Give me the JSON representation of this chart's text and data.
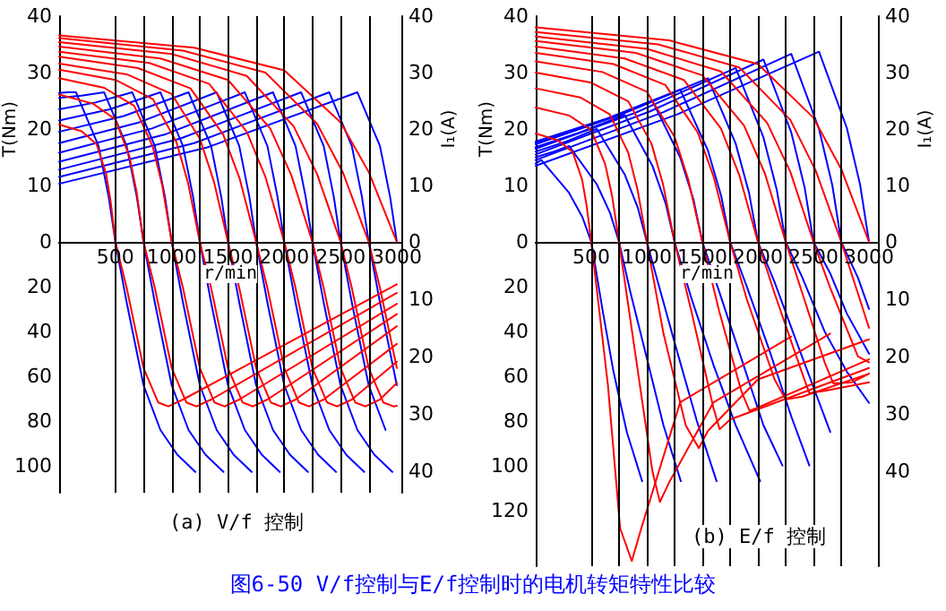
{
  "chart_data": [
    {
      "type": "line",
      "xlabel": "r/min",
      "ylabel": "T(Nm)",
      "y2label": "I₁(A)",
      "xlim": [
        0,
        3040
      ],
      "xticks": [
        500,
        1000,
        1500,
        2000,
        2500,
        3000
      ],
      "ylim": [
        0,
        40
      ],
      "yticks": [
        0,
        10,
        20,
        30,
        40
      ],
      "y2lim": [
        0,
        40
      ],
      "y2ticks": [
        0,
        10,
        20,
        30,
        40
      ],
      "ref_lines": [
        {
          "axis": "x",
          "value": 500,
          "color": "#000000"
        },
        {
          "axis": "x",
          "value": 750,
          "color": "#000000"
        },
        {
          "axis": "x",
          "value": 1000,
          "color": "#000000"
        },
        {
          "axis": "x",
          "value": 1250,
          "color": "#000000"
        },
        {
          "axis": "x",
          "value": 1500,
          "color": "#000000"
        },
        {
          "axis": "x",
          "value": 1750,
          "color": "#000000"
        },
        {
          "axis": "x",
          "value": 2000,
          "color": "#000000"
        },
        {
          "axis": "x",
          "value": 2250,
          "color": "#000000"
        },
        {
          "axis": "x",
          "value": 2500,
          "color": "#000000"
        },
        {
          "axis": "x",
          "value": 2750,
          "color": "#000000"
        }
      ],
      "series": [
        {
          "color": "#0000ff",
          "x": [
            0,
            75,
            150,
            350,
            440,
            500
          ],
          "values": [
            26.4,
            26.5,
            26.5,
            17,
            8,
            0
          ]
        },
        {
          "color": "#0000ff",
          "x": [
            0,
            200,
            400,
            600,
            690,
            750
          ],
          "values": [
            25.5,
            25.9,
            26.5,
            17,
            8,
            0
          ]
        },
        {
          "color": "#0000ff",
          "x": [
            0,
            325,
            650,
            850,
            940,
            1000
          ],
          "values": [
            23.5,
            24.7,
            26.5,
            17,
            8,
            0
          ]
        },
        {
          "color": "#0000ff",
          "x": [
            0,
            450,
            900,
            1100,
            1190,
            1250
          ],
          "values": [
            21.5,
            23.5,
            26.5,
            17,
            8,
            0
          ]
        },
        {
          "color": "#0000ff",
          "x": [
            0,
            575,
            1150,
            1350,
            1440,
            1500
          ],
          "values": [
            19.5,
            22.3,
            26.5,
            17,
            8,
            0
          ]
        },
        {
          "color": "#0000ff",
          "x": [
            0,
            700,
            1400,
            1600,
            1690,
            1750
          ],
          "values": [
            17.5,
            21.1,
            26.5,
            17,
            8,
            0
          ]
        },
        {
          "color": "#0000ff",
          "x": [
            0,
            825,
            1650,
            1850,
            1940,
            2000
          ],
          "values": [
            15.8,
            20.1,
            26.5,
            17,
            8,
            0
          ]
        },
        {
          "color": "#0000ff",
          "x": [
            0,
            950,
            1900,
            2100,
            2190,
            2250
          ],
          "values": [
            14.2,
            19.1,
            26.5,
            17,
            8,
            0
          ]
        },
        {
          "color": "#0000ff",
          "x": [
            0,
            1075,
            2150,
            2350,
            2440,
            2500
          ],
          "values": [
            12.8,
            18.3,
            26.5,
            17,
            8,
            0
          ]
        },
        {
          "color": "#0000ff",
          "x": [
            0,
            1200,
            2400,
            2600,
            2690,
            2750
          ],
          "values": [
            11.5,
            17.5,
            26.5,
            17,
            8,
            0
          ]
        },
        {
          "color": "#0000ff",
          "x": [
            0,
            1325,
            2650,
            2850,
            2940,
            3000
          ],
          "values": [
            10.3,
            16.8,
            26.5,
            17,
            8,
            0
          ]
        },
        {
          "color": "#ff0000",
          "axis": "y2",
          "x": [
            0,
            200,
            333,
            417,
            458,
            500
          ],
          "values": [
            20.8,
            19.6,
            17.3,
            12.1,
            7.1,
            0
          ]
        },
        {
          "color": "#ff0000",
          "axis": "y2",
          "x": [
            0,
            300,
            500,
            625,
            688,
            750
          ],
          "values": [
            26.1,
            24.5,
            21.7,
            15.1,
            8.9,
            0
          ]
        },
        {
          "color": "#ff0000",
          "axis": "y2",
          "x": [
            0,
            400,
            667,
            833,
            917,
            1000
          ],
          "values": [
            29,
            27.3,
            24.1,
            16.8,
            9.9,
            0
          ]
        },
        {
          "color": "#ff0000",
          "axis": "y2",
          "x": [
            0,
            500,
            833,
            1042,
            1146,
            1250
          ],
          "values": [
            30.5,
            28.7,
            25.3,
            17.7,
            10.4,
            0
          ]
        },
        {
          "color": "#ff0000",
          "axis": "y2",
          "x": [
            0,
            600,
            1000,
            1250,
            1375,
            1500
          ],
          "values": [
            31.6,
            29.7,
            26.2,
            18.3,
            10.7,
            0
          ]
        },
        {
          "color": "#ff0000",
          "axis": "y2",
          "x": [
            0,
            700,
            1167,
            1458,
            1604,
            1750
          ],
          "values": [
            32.8,
            30.8,
            27.2,
            19,
            11.2,
            0
          ]
        },
        {
          "color": "#ff0000",
          "axis": "y2",
          "x": [
            0,
            800,
            1333,
            1667,
            1833,
            2000
          ],
          "values": [
            33.7,
            31.7,
            28,
            19.5,
            11.5,
            0
          ]
        },
        {
          "color": "#ff0000",
          "axis": "y2",
          "x": [
            0,
            900,
            1500,
            1875,
            2063,
            2250
          ],
          "values": [
            34.6,
            32.5,
            28.7,
            20.1,
            11.8,
            0
          ]
        },
        {
          "color": "#ff0000",
          "axis": "y2",
          "x": [
            0,
            1000,
            1667,
            2083,
            2292,
            2500
          ],
          "values": [
            35.4,
            33.3,
            29.4,
            20.5,
            12,
            0
          ]
        },
        {
          "color": "#ff0000",
          "axis": "y2",
          "x": [
            0,
            1100,
            1833,
            2292,
            2521,
            2750
          ],
          "values": [
            36.1,
            33.9,
            30,
            20.9,
            12.3,
            0
          ]
        },
        {
          "color": "#ff0000",
          "axis": "y2",
          "x": [
            0,
            1200,
            2000,
            2500,
            2750,
            3000
          ],
          "values": [
            36.6,
            34.4,
            30.4,
            21.2,
            12.4,
            0
          ]
        }
      ]
    },
    {
      "type": "line",
      "title": "(a) V/f 控制",
      "tick_labels": "y",
      "xlim": [
        0,
        3040
      ],
      "ylim": [
        112,
        0
      ],
      "yticks": [
        20,
        40,
        60,
        80,
        100
      ],
      "y2lim": [
        43.75,
        0
      ],
      "y2ticks": [
        10,
        20,
        30,
        40
      ],
      "ref_lines": [
        {
          "axis": "x",
          "value": 500,
          "color": "#000000"
        },
        {
          "axis": "x",
          "value": 750,
          "color": "#000000"
        },
        {
          "axis": "x",
          "value": 1000,
          "color": "#000000"
        },
        {
          "axis": "x",
          "value": 1250,
          "color": "#000000"
        },
        {
          "axis": "x",
          "value": 1500,
          "color": "#000000"
        },
        {
          "axis": "x",
          "value": 1750,
          "color": "#000000"
        },
        {
          "axis": "x",
          "value": 2000,
          "color": "#000000"
        },
        {
          "axis": "x",
          "value": 2250,
          "color": "#000000"
        },
        {
          "axis": "x",
          "value": 2500,
          "color": "#000000"
        },
        {
          "axis": "x",
          "value": 2750,
          "color": "#000000"
        }
      ],
      "series": [
        {
          "color": "#0000ff",
          "x": [
            500,
            600,
            750,
            900,
            1050,
            1210
          ],
          "values": [
            0,
            27,
            64,
            84,
            95,
            102.7
          ]
        },
        {
          "color": "#0000ff",
          "x": [
            750,
            850,
            1000,
            1150,
            1300,
            1460
          ],
          "values": [
            0,
            27,
            64,
            84,
            95,
            102.7
          ]
        },
        {
          "color": "#0000ff",
          "x": [
            1000,
            1100,
            1250,
            1400,
            1550,
            1710
          ],
          "values": [
            0,
            27,
            64,
            84,
            95,
            102.7
          ]
        },
        {
          "color": "#0000ff",
          "x": [
            1250,
            1350,
            1500,
            1650,
            1800,
            1960
          ],
          "values": [
            0,
            27,
            64,
            84,
            95,
            102.7
          ]
        },
        {
          "color": "#0000ff",
          "x": [
            1500,
            1600,
            1750,
            1900,
            2050,
            2210
          ],
          "values": [
            0,
            27,
            64,
            84,
            95,
            102.7
          ]
        },
        {
          "color": "#0000ff",
          "x": [
            1750,
            1850,
            2000,
            2150,
            2300,
            2460
          ],
          "values": [
            0,
            27,
            64,
            84,
            95,
            102.7
          ]
        },
        {
          "color": "#0000ff",
          "x": [
            2000,
            2100,
            2250,
            2400,
            2550,
            2710
          ],
          "values": [
            0,
            27,
            64,
            84,
            95,
            102.7
          ]
        },
        {
          "color": "#0000ff",
          "x": [
            2250,
            2350,
            2500,
            2650,
            2800,
            2960
          ],
          "values": [
            0,
            27,
            64,
            84,
            95,
            102.7
          ]
        },
        {
          "color": "#0000ff",
          "x": [
            2500,
            2600,
            2750,
            2900
          ],
          "values": [
            0,
            27,
            64,
            84
          ]
        },
        {
          "color": "#0000ff",
          "x": [
            2750,
            2850,
            3000
          ],
          "values": [
            0,
            27,
            64
          ]
        },
        {
          "color": "#ff0000",
          "axis": "y2",
          "x": [
            500,
            600,
            750,
            880,
            970,
            1100,
            3000
          ],
          "values": [
            0,
            8,
            22,
            28,
            28.7,
            27.5,
            7.4
          ]
        },
        {
          "color": "#ff0000",
          "axis": "y2",
          "x": [
            750,
            850,
            1000,
            1130,
            1220,
            1350,
            3000
          ],
          "values": [
            0,
            8,
            22,
            28,
            28.7,
            27.5,
            8.9
          ]
        },
        {
          "color": "#ff0000",
          "axis": "y2",
          "x": [
            1000,
            1100,
            1250,
            1380,
            1470,
            1600,
            3000
          ],
          "values": [
            0,
            8,
            22,
            28,
            28.7,
            27.5,
            10.8
          ]
        },
        {
          "color": "#ff0000",
          "axis": "y2",
          "x": [
            1250,
            1350,
            1500,
            1630,
            1720,
            1850,
            3000
          ],
          "values": [
            0,
            8,
            22,
            28,
            28.7,
            27.5,
            12.6
          ]
        },
        {
          "color": "#ff0000",
          "axis": "y2",
          "x": [
            1500,
            1600,
            1750,
            1880,
            1970,
            2100,
            3000
          ],
          "values": [
            0,
            8,
            22,
            28,
            28.7,
            27.5,
            14.7
          ]
        },
        {
          "color": "#ff0000",
          "axis": "y2",
          "x": [
            1750,
            1850,
            2000,
            2130,
            2220,
            2350,
            3000
          ],
          "values": [
            0,
            8,
            22,
            28,
            28.7,
            27.5,
            17.8
          ]
        },
        {
          "color": "#ff0000",
          "axis": "y2",
          "x": [
            2000,
            2100,
            2250,
            2380,
            2470,
            2600,
            3000
          ],
          "values": [
            0,
            8,
            22,
            28,
            28.7,
            27.5,
            20.9
          ]
        },
        {
          "color": "#ff0000",
          "axis": "y2",
          "x": [
            2250,
            2350,
            2500,
            2630,
            2720,
            2850,
            3000
          ],
          "values": [
            0,
            8,
            22,
            28,
            28.7,
            27.5,
            24.6
          ]
        },
        {
          "color": "#ff0000",
          "axis": "y2",
          "x": [
            2500,
            2600,
            2750,
            2880,
            2970,
            3000
          ],
          "values": [
            0,
            8,
            22,
            28,
            28.7,
            28.6
          ]
        },
        {
          "color": "#ff0000",
          "axis": "y2",
          "x": [
            2750,
            2850,
            3000
          ],
          "values": [
            0,
            8,
            22
          ]
        }
      ]
    },
    {
      "type": "line",
      "xlabel": "r/min",
      "ylabel": "T(Nm)",
      "y2label": "I₁(A)",
      "xlim": [
        0,
        3080
      ],
      "xticks": [
        500,
        1000,
        1500,
        2000,
        2500,
        3000
      ],
      "ylim": [
        0,
        40
      ],
      "yticks": [
        0,
        10,
        20,
        30,
        40
      ],
      "y2lim": [
        0,
        40
      ],
      "y2ticks": [
        0,
        10,
        20,
        30,
        40
      ],
      "ref_lines": [
        {
          "axis": "x",
          "value": 500,
          "color": "#000000"
        },
        {
          "axis": "x",
          "value": 750,
          "color": "#000000"
        },
        {
          "axis": "x",
          "value": 1000,
          "color": "#000000"
        },
        {
          "axis": "x",
          "value": 1250,
          "color": "#000000"
        },
        {
          "axis": "x",
          "value": 1500,
          "color": "#000000"
        },
        {
          "axis": "x",
          "value": 1750,
          "color": "#000000"
        },
        {
          "axis": "x",
          "value": 2000,
          "color": "#000000"
        },
        {
          "axis": "x",
          "value": 2250,
          "color": "#000000"
        },
        {
          "axis": "x",
          "value": 2500,
          "color": "#000000"
        },
        {
          "axis": "x",
          "value": 2750,
          "color": "#000000"
        }
      ],
      "series": [
        {
          "color": "#0000ff",
          "x": [
            0,
            50,
            300,
            420,
            500
          ],
          "values": [
            13.9,
            14.5,
            8.7,
            4.4,
            0
          ]
        },
        {
          "color": "#0000ff",
          "x": [
            0,
            150,
            300,
            550,
            670,
            750
          ],
          "values": [
            15,
            15.9,
            17,
            10.2,
            5.1,
            0
          ]
        },
        {
          "color": "#0000ff",
          "x": [
            0,
            275,
            550,
            800,
            920,
            1000
          ],
          "values": [
            16,
            17.8,
            20,
            12,
            6,
            0
          ]
        },
        {
          "color": "#0000ff",
          "x": [
            0,
            400,
            800,
            1050,
            1170,
            1250
          ],
          "values": [
            16.8,
            19.4,
            22.5,
            13.5,
            6.8,
            0
          ]
        },
        {
          "color": "#0000ff",
          "x": [
            0,
            525,
            1050,
            1300,
            1420,
            1500
          ],
          "values": [
            17.5,
            20.9,
            25,
            15,
            7.5,
            0
          ]
        },
        {
          "color": "#0000ff",
          "x": [
            0,
            650,
            1300,
            1550,
            1670,
            1750
          ],
          "values": [
            17.8,
            21.9,
            27,
            16.2,
            8.1,
            0
          ]
        },
        {
          "color": "#0000ff",
          "x": [
            0,
            775,
            1550,
            1800,
            1920,
            2000
          ],
          "values": [
            17.3,
            22.6,
            29,
            17.4,
            8.7,
            0
          ]
        },
        {
          "color": "#0000ff",
          "x": [
            0,
            900,
            1800,
            2050,
            2170,
            2250
          ],
          "values": [
            16.5,
            22.9,
            30.8,
            18.5,
            9.2,
            0
          ]
        },
        {
          "color": "#0000ff",
          "x": [
            0,
            1025,
            2050,
            2300,
            2420,
            2500
          ],
          "values": [
            15.5,
            23.1,
            32.3,
            19.4,
            9.7,
            0
          ]
        },
        {
          "color": "#0000ff",
          "x": [
            0,
            1150,
            2300,
            2550,
            2670,
            2750
          ],
          "values": [
            14.5,
            23,
            33.3,
            20,
            10,
            0
          ]
        },
        {
          "color": "#0000ff",
          "x": [
            0,
            1275,
            2550,
            2800,
            2920,
            3000
          ],
          "values": [
            13.5,
            22.6,
            33.7,
            20.2,
            10.1,
            0
          ]
        },
        {
          "color": "#ff0000",
          "axis": "y2",
          "x": [
            0,
            200,
            333,
            417,
            458,
            500
          ],
          "values": [
            19.2,
            18,
            15.9,
            11.1,
            6.5,
            0
          ]
        },
        {
          "color": "#ff0000",
          "axis": "y2",
          "x": [
            0,
            300,
            500,
            625,
            688,
            750
          ],
          "values": [
            23.8,
            22.4,
            19.8,
            13.8,
            8.1,
            0
          ]
        },
        {
          "color": "#ff0000",
          "axis": "y2",
          "x": [
            0,
            400,
            667,
            833,
            917,
            1000
          ],
          "values": [
            27.2,
            25.6,
            22.6,
            15.8,
            9.2,
            0
          ]
        },
        {
          "color": "#ff0000",
          "axis": "y2",
          "x": [
            0,
            500,
            833,
            1042,
            1146,
            1250
          ],
          "values": [
            30,
            28.2,
            24.9,
            17.4,
            10.2,
            0
          ]
        },
        {
          "color": "#ff0000",
          "axis": "y2",
          "x": [
            0,
            600,
            1000,
            1250,
            1375,
            1500
          ],
          "values": [
            32,
            30.1,
            26.6,
            18.6,
            10.9,
            0
          ]
        },
        {
          "color": "#ff0000",
          "axis": "y2",
          "x": [
            0,
            700,
            1167,
            1458,
            1604,
            1750
          ],
          "values": [
            33.5,
            31.5,
            27.8,
            19.4,
            11.4,
            0
          ]
        },
        {
          "color": "#ff0000",
          "axis": "y2",
          "x": [
            0,
            800,
            1333,
            1667,
            1833,
            2000
          ],
          "values": [
            34.6,
            32.5,
            28.7,
            20.1,
            11.8,
            0
          ]
        },
        {
          "color": "#ff0000",
          "axis": "y2",
          "x": [
            0,
            900,
            1500,
            1875,
            2063,
            2250
          ],
          "values": [
            35.6,
            33.5,
            29.5,
            20.6,
            12.1,
            0
          ]
        },
        {
          "color": "#ff0000",
          "axis": "y2",
          "x": [
            0,
            1000,
            1667,
            2083,
            2292,
            2500
          ],
          "values": [
            36.4,
            34.2,
            30.2,
            21.1,
            12.4,
            0
          ]
        },
        {
          "color": "#ff0000",
          "axis": "y2",
          "x": [
            0,
            1100,
            1833,
            2292,
            2521,
            2750
          ],
          "values": [
            37.2,
            35,
            30.9,
            21.6,
            12.6,
            0
          ]
        },
        {
          "color": "#ff0000",
          "axis": "y2",
          "x": [
            0,
            1200,
            2000,
            2500,
            2750,
            3000
          ],
          "values": [
            38,
            35.7,
            31.5,
            22,
            12.9,
            0
          ]
        }
      ]
    },
    {
      "type": "line",
      "title": "(b) E/f 控制",
      "annotations": [
        "图6-50 V/f控制与E/f控制时的电机转矩特性比较"
      ],
      "tick_labels": "y",
      "xlim": [
        0,
        3080
      ],
      "ylim": [
        145,
        0
      ],
      "yticks": [
        20,
        40,
        60,
        80,
        100,
        120
      ],
      "y2lim": [
        56.6,
        0
      ],
      "y2ticks": [
        10,
        20,
        30,
        40
      ],
      "ref_lines": [
        {
          "axis": "x",
          "value": 500,
          "color": "#000000"
        },
        {
          "axis": "x",
          "value": 750,
          "color": "#000000"
        },
        {
          "axis": "x",
          "value": 1000,
          "color": "#000000"
        },
        {
          "axis": "x",
          "value": 1250,
          "color": "#000000"
        },
        {
          "axis": "x",
          "value": 1500,
          "color": "#000000"
        },
        {
          "axis": "x",
          "value": 1750,
          "color": "#000000"
        },
        {
          "axis": "x",
          "value": 2000,
          "color": "#000000"
        },
        {
          "axis": "x",
          "value": 2250,
          "color": "#000000"
        },
        {
          "axis": "x",
          "value": 2500,
          "color": "#000000"
        },
        {
          "axis": "x",
          "value": 2750,
          "color": "#000000"
        }
      ],
      "series": [
        {
          "color": "#0000ff",
          "x": [
            500,
            600,
            700,
            820,
            958
          ],
          "values": [
            0,
            30,
            58,
            85,
            107
          ]
        },
        {
          "color": "#0000ff",
          "x": [
            750,
            850,
            1000,
            1150,
            1306
          ],
          "values": [
            0,
            22,
            52,
            82,
            107
          ]
        },
        {
          "color": "#0000ff",
          "x": [
            1000,
            1100,
            1250,
            1450,
            1628
          ],
          "values": [
            0,
            18,
            45,
            80,
            107
          ]
        },
        {
          "color": "#0000ff",
          "x": [
            1250,
            1400,
            1600,
            1800,
            2020
          ],
          "values": [
            0,
            25,
            55,
            82,
            107
          ]
        },
        {
          "color": "#0000ff",
          "x": [
            1500,
            1650,
            1850,
            2050,
            2221
          ],
          "values": [
            0,
            22,
            52,
            82,
            100
          ]
        },
        {
          "color": "#0000ff",
          "x": [
            1750,
            1900,
            2100,
            2300,
            2463
          ],
          "values": [
            0,
            20,
            48,
            78,
            100
          ]
        },
        {
          "color": "#0000ff",
          "x": [
            2000,
            2150,
            2350,
            2500,
            2651
          ],
          "values": [
            0,
            18,
            45,
            65,
            85
          ]
        },
        {
          "color": "#0000ff",
          "x": [
            2250,
            2400,
            2600,
            2800,
            3000
          ],
          "values": [
            0,
            16,
            40,
            58,
            72
          ]
        },
        {
          "color": "#0000ff",
          "x": [
            2500,
            2650,
            2800,
            3000
          ],
          "values": [
            0,
            14,
            32,
            50
          ]
        },
        {
          "color": "#0000ff",
          "x": [
            2750,
            2900,
            3000
          ],
          "values": [
            0,
            16,
            30
          ]
        },
        {
          "color": "#ff0000",
          "axis": "y2",
          "x": [
            500,
            650,
            760,
            865,
            950,
            1300,
            2300
          ],
          "values": [
            0,
            25,
            50,
            55.7,
            50,
            28,
            16.5
          ]
        },
        {
          "color": "#ff0000",
          "axis": "y2",
          "x": [
            750,
            900,
            1050,
            1118,
            1200,
            1600,
            2650
          ],
          "values": [
            0,
            20,
            40,
            45.4,
            42,
            28,
            16
          ]
        },
        {
          "color": "#ff0000",
          "axis": "y2",
          "x": [
            1000,
            1150,
            1350,
            1468,
            1550,
            2000,
            3000
          ],
          "values": [
            0,
            16,
            32,
            36,
            33,
            24,
            17
          ]
        },
        {
          "color": "#ff0000",
          "axis": "y2",
          "x": [
            1250,
            1400,
            1600,
            1656,
            1750,
            3000
          ],
          "values": [
            0,
            12,
            29,
            32.7,
            31,
            22
          ]
        },
        {
          "color": "#ff0000",
          "axis": "y2",
          "x": [
            1500,
            1650,
            1850,
            1925,
            2050,
            3000
          ],
          "values": [
            0,
            12,
            26,
            29.5,
            28.5,
            20.5
          ]
        },
        {
          "color": "#ff0000",
          "axis": "y2",
          "x": [
            1750,
            1900,
            2150,
            2248,
            2400,
            3000
          ],
          "values": [
            0,
            10,
            24,
            27.5,
            27,
            23
          ]
        },
        {
          "color": "#ff0000",
          "axis": "y2",
          "x": [
            2000,
            2150,
            2400,
            2463,
            2600,
            3000
          ],
          "values": [
            0,
            9,
            23,
            26.4,
            26,
            24.5
          ]
        },
        {
          "color": "#ff0000",
          "axis": "y2",
          "x": [
            2250,
            2400,
            2600,
            2678,
            2850,
            3000
          ],
          "values": [
            0,
            9,
            21,
            24.7,
            24.5,
            23
          ]
        },
        {
          "color": "#ff0000",
          "axis": "y2",
          "x": [
            2500,
            2650,
            2900,
            3000
          ],
          "values": [
            0,
            8,
            20,
            21
          ]
        },
        {
          "color": "#ff0000",
          "axis": "y2",
          "x": [
            2750,
            2900,
            3000
          ],
          "values": [
            0,
            9,
            15
          ]
        }
      ]
    }
  ]
}
